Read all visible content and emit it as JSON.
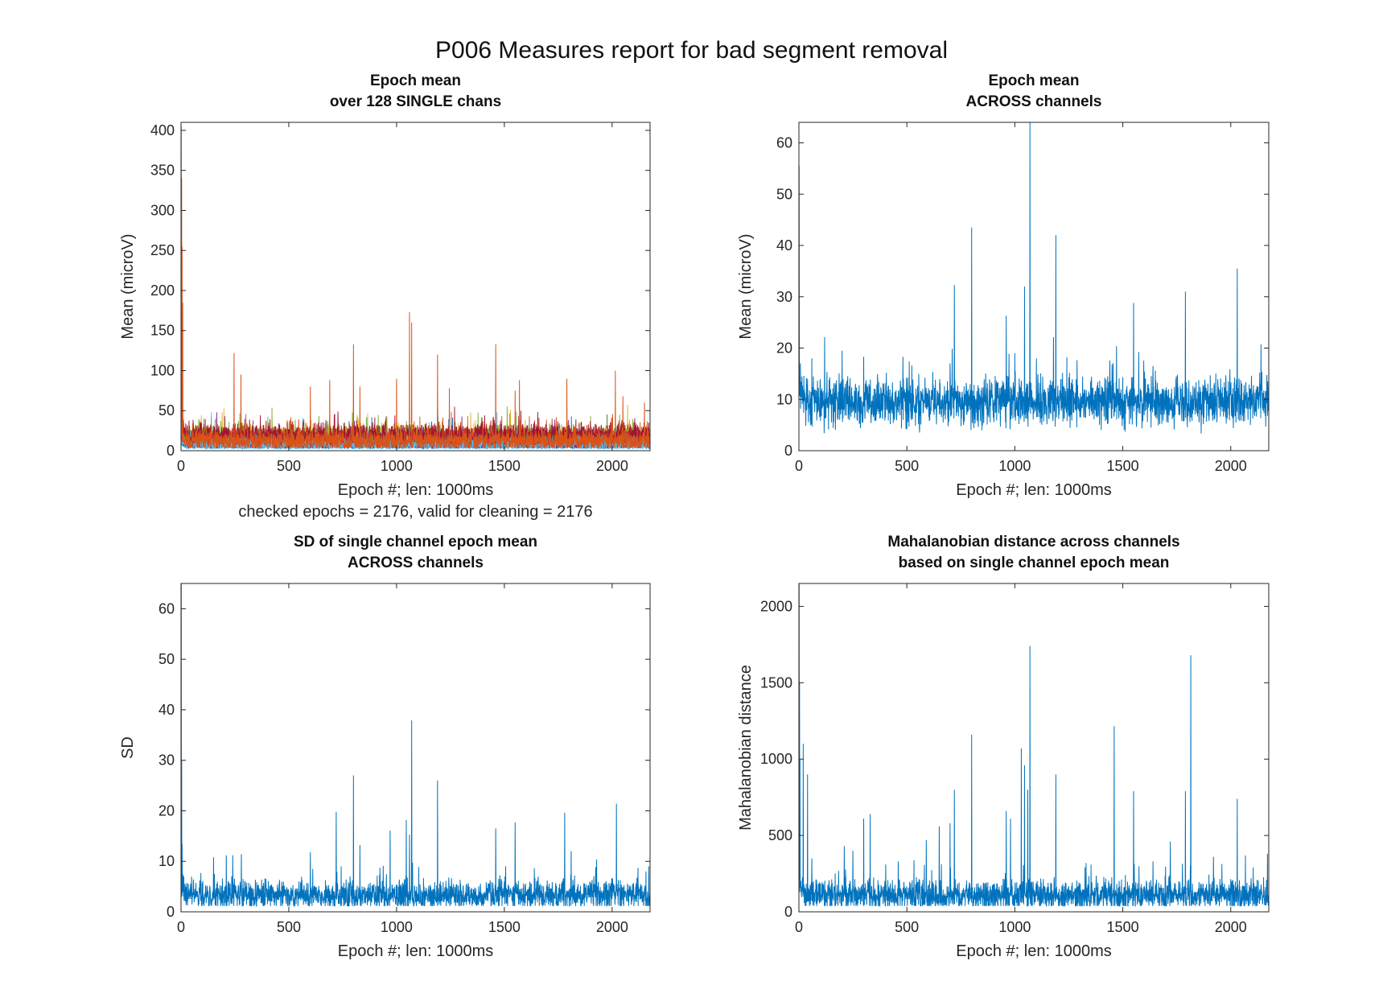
{
  "figure": {
    "suptitle": "P006 Measures report for bad segment removal",
    "line_color": "#0072BD"
  },
  "chart_data": [
    {
      "id": "tl",
      "type": "line",
      "title": [
        "Epoch mean",
        "over 128 SINGLE chans"
      ],
      "xlabel": "Epoch #; len: 1000ms",
      "note": "checked epochs = 2176, valid for cleaning = 2176",
      "ylabel": "Mean (microV)",
      "xlim": [
        0,
        2176
      ],
      "ylim": [
        0,
        410
      ],
      "xticks": [
        0,
        500,
        1000,
        1500,
        2000
      ],
      "yticks": [
        0,
        50,
        100,
        150,
        200,
        250,
        300,
        350,
        400
      ],
      "grid": false,
      "n_points": 2176,
      "series_colors": [
        "#0072BD",
        "#D95319",
        "#EDB120",
        "#7E2F8E",
        "#77AC30",
        "#4DBEEE",
        "#A2142F"
      ],
      "series_base_level": [
        8,
        14,
        18,
        11,
        16,
        9,
        20
      ],
      "baseline": 12,
      "noise": 7,
      "spikes": [
        [
          1,
          405
        ],
        [
          3,
          340
        ],
        [
          5,
          255
        ],
        [
          8,
          185
        ],
        [
          246,
          122
        ],
        [
          278,
          95
        ],
        [
          600,
          80
        ],
        [
          690,
          88
        ],
        [
          800,
          133
        ],
        [
          830,
          80
        ],
        [
          1000,
          90
        ],
        [
          1060,
          173
        ],
        [
          1070,
          160
        ],
        [
          1190,
          120
        ],
        [
          1245,
          78
        ],
        [
          1460,
          133
        ],
        [
          1550,
          75
        ],
        [
          1570,
          88
        ],
        [
          1790,
          90
        ],
        [
          2015,
          100
        ],
        [
          2050,
          68
        ],
        [
          2150,
          60
        ]
      ]
    },
    {
      "id": "tr",
      "type": "line",
      "title": [
        "Epoch mean",
        "ACROSS channels"
      ],
      "xlabel": "Epoch #; len: 1000ms",
      "ylabel": "Mean (microV)",
      "xlim": [
        0,
        2176
      ],
      "ylim": [
        0,
        64
      ],
      "xticks": [
        0,
        500,
        1000,
        1500,
        2000
      ],
      "yticks": [
        0,
        10,
        20,
        30,
        40,
        50,
        60
      ],
      "grid": false,
      "n_points": 2176,
      "baseline": 9.5,
      "noise": 2.3,
      "spikes": [
        [
          1,
          55.5
        ],
        [
          2,
          20
        ],
        [
          40,
          14
        ],
        [
          60,
          18
        ],
        [
          200,
          19.5
        ],
        [
          300,
          18.3
        ],
        [
          700,
          17
        ],
        [
          720,
          32.3
        ],
        [
          800,
          43.5
        ],
        [
          960,
          26.3
        ],
        [
          1000,
          19
        ],
        [
          1045,
          32
        ],
        [
          1070,
          64
        ],
        [
          1100,
          18
        ],
        [
          1190,
          42
        ],
        [
          1450,
          16.8
        ],
        [
          1550,
          28.8
        ],
        [
          1640,
          16.5
        ],
        [
          1790,
          31
        ],
        [
          2030,
          35.5
        ],
        [
          2140,
          20.7
        ]
      ]
    },
    {
      "id": "bl",
      "type": "line",
      "title": [
        "SD of single channel epoch mean",
        "ACROSS channels"
      ],
      "xlabel": "Epoch #; len: 1000ms",
      "ylabel": "SD",
      "xlim": [
        0,
        2176
      ],
      "ylim": [
        0,
        65
      ],
      "xticks": [
        0,
        500,
        1000,
        1500,
        2000
      ],
      "yticks": [
        0,
        10,
        20,
        30,
        40,
        50,
        60
      ],
      "grid": false,
      "n_points": 2176,
      "baseline": 3.3,
      "noise": 1.4,
      "spikes": [
        [
          1,
          65
        ],
        [
          3,
          30
        ],
        [
          5,
          13.5
        ],
        [
          210,
          11.2
        ],
        [
          240,
          11.2
        ],
        [
          280,
          11.4
        ],
        [
          600,
          11.8
        ],
        [
          720,
          19.8
        ],
        [
          800,
          27
        ],
        [
          830,
          13.2
        ],
        [
          970,
          16.1
        ],
        [
          1045,
          18.2
        ],
        [
          1060,
          15.3
        ],
        [
          1070,
          37.9
        ],
        [
          1190,
          26
        ],
        [
          1460,
          16.5
        ],
        [
          1550,
          17.7
        ],
        [
          1780,
          19.6
        ],
        [
          1810,
          12
        ],
        [
          2020,
          21.4
        ],
        [
          2170,
          9
        ]
      ]
    },
    {
      "id": "br",
      "type": "line",
      "title": [
        "Mahalanobian distance across channels",
        "based on single channel epoch mean"
      ],
      "xlabel": "Epoch #; len: 1000ms",
      "ylabel": "Mahalanobian distance",
      "xlim": [
        0,
        2176
      ],
      "ylim": [
        0,
        2150
      ],
      "xticks": [
        0,
        500,
        1000,
        1500,
        2000
      ],
      "yticks": [
        0,
        500,
        1000,
        1500,
        2000
      ],
      "grid": false,
      "n_points": 2176,
      "baseline": 110,
      "noise": 50,
      "spikes": [
        [
          1,
          2150
        ],
        [
          3,
          1500
        ],
        [
          5,
          1000
        ],
        [
          20,
          1100
        ],
        [
          40,
          900
        ],
        [
          60,
          350
        ],
        [
          210,
          430
        ],
        [
          250,
          400
        ],
        [
          300,
          610
        ],
        [
          330,
          640
        ],
        [
          460,
          330
        ],
        [
          590,
          470
        ],
        [
          650,
          560
        ],
        [
          700,
          580
        ],
        [
          720,
          800
        ],
        [
          800,
          1160
        ],
        [
          960,
          660
        ],
        [
          980,
          610
        ],
        [
          1030,
          1070
        ],
        [
          1045,
          960
        ],
        [
          1060,
          800
        ],
        [
          1070,
          1740
        ],
        [
          1190,
          900
        ],
        [
          1330,
          320
        ],
        [
          1460,
          1215
        ],
        [
          1550,
          790
        ],
        [
          1640,
          330
        ],
        [
          1720,
          460
        ],
        [
          1790,
          790
        ],
        [
          1815,
          1680
        ],
        [
          1920,
          360
        ],
        [
          2030,
          740
        ],
        [
          2170,
          380
        ]
      ]
    }
  ]
}
